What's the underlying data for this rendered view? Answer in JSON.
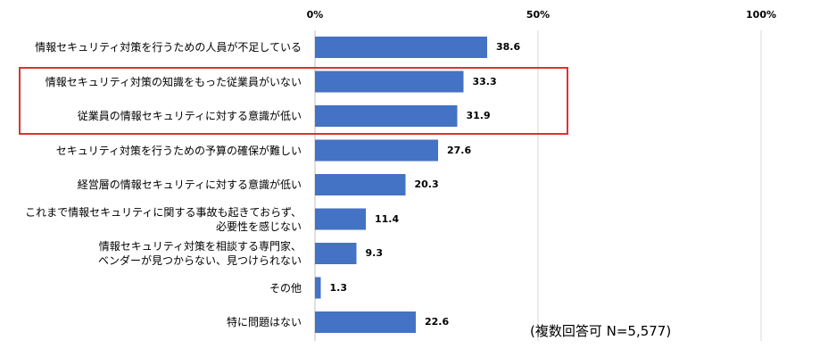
{
  "chart_data": {
    "type": "bar",
    "orientation": "horizontal",
    "categories": [
      "情報セキュリティ対策を行うための人員が不足している",
      "情報セキュリティ対策の知識をもった従業員がいない",
      "従業員の情報セキュリティに対する意識が低い",
      "セキュリティ対策を行うための予算の確保が難しい",
      "経営層の情報セキュリティに対する意識が低い",
      "これまで情報セキュリティに関する事故も起きておらず、\n必要性を感じない",
      "情報セキュリティ対策を相談する専門家、\nベンダーが見つからない、見つけられない",
      "その他",
      "特に問題はない"
    ],
    "values": [
      38.6,
      33.3,
      31.9,
      27.6,
      20.3,
      11.4,
      9.3,
      1.3,
      22.6
    ],
    "value_labels": [
      "38.6",
      "33.3",
      "31.9",
      "27.6",
      "20.3",
      "11.4",
      "9.3",
      "1.3",
      "22.6"
    ],
    "xlim": [
      0,
      100
    ],
    "x_tick_labels": [
      "0%",
      "50%",
      "100%"
    ],
    "x_tick_values": [
      0,
      50,
      100
    ],
    "bar_color": "#4472c4",
    "highlight_color": "#e03030",
    "highlighted_categories": [
      1,
      2
    ],
    "grid": true,
    "note": "(複数回答可 N=5,577)"
  }
}
